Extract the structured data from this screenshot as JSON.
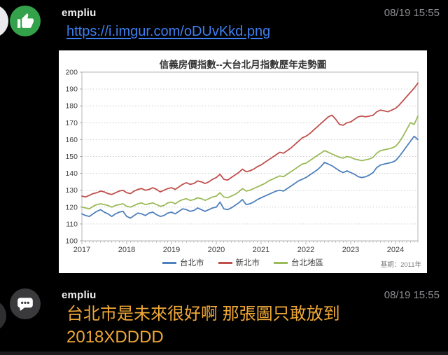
{
  "messages": [
    {
      "author": "empliu",
      "timestamp": "08/19 15:55",
      "link_text": "https://i.imgur.com/oDUvKkd.png",
      "avatar_icon": "thumbs-up-icon",
      "avatar_color": "#34a24a"
    },
    {
      "author": "empliu",
      "timestamp": "08/19 15:55",
      "text": "台北市是未來很好啊 那張圖只敢放到 2018XDDDD",
      "avatar_icon": "chat-bubble-icon",
      "avatar_color": "#3a3a3c",
      "text_color": "#f0a836"
    }
  ],
  "chart_data": {
    "type": "line",
    "title": "信義房價指數--大台北月指數歷年走勢圖",
    "note": "基期：2011年",
    "x_tick_labels": [
      "2017",
      "2018",
      "2019",
      "2020",
      "2021",
      "2022",
      "2023",
      "2024"
    ],
    "x_unit": "month",
    "months_per_label": 12,
    "ylim": [
      100,
      200
    ],
    "y_tick_step": 10,
    "grid": "dotted-horizontal",
    "legend_position": "bottom",
    "axis_color": "#b5b5b5",
    "grid_color": "#cccccc",
    "label_color": "#3f3f3f",
    "series": [
      {
        "name": "台北市",
        "color": "#4f81bd",
        "values": [
          116,
          115,
          114.5,
          116,
          117.5,
          118.5,
          117,
          116,
          114.5,
          116,
          117,
          117.5,
          114.5,
          113.5,
          115,
          116.5,
          116,
          115,
          116.5,
          117,
          115.5,
          114.5,
          115,
          116.5,
          117,
          116,
          117.5,
          119,
          118.5,
          117.5,
          118,
          119.5,
          118.5,
          117.5,
          118.5,
          119.5,
          120,
          123,
          119,
          118.5,
          119.5,
          121,
          122.5,
          124.5,
          121.5,
          122,
          123,
          124.5,
          125.5,
          126.5,
          127.5,
          128.5,
          129.5,
          130,
          129.5,
          131,
          132.5,
          134,
          135.5,
          136.5,
          137.5,
          139,
          140.5,
          142,
          144,
          146.5,
          145.5,
          144.5,
          143,
          141.5,
          140.5,
          141.5,
          140.5,
          139.5,
          138,
          137.5,
          138,
          139,
          140.5,
          143.5,
          145,
          145.5,
          146,
          146.5,
          147.5,
          150,
          153,
          156,
          159,
          162,
          160
        ]
      },
      {
        "name": "新北市",
        "color": "#c0504d",
        "values": [
          126.5,
          126,
          127,
          128,
          128.5,
          129.5,
          129,
          128,
          127.5,
          128.5,
          129.5,
          130,
          128.5,
          128,
          129.5,
          130.5,
          131,
          130,
          130.5,
          131.5,
          130.5,
          129,
          130,
          131,
          131.5,
          130.5,
          132,
          133.5,
          134.5,
          133.5,
          134,
          135.5,
          135,
          134,
          135,
          136.5,
          137.5,
          139.5,
          136.5,
          136,
          137.5,
          139,
          140.5,
          142.5,
          141,
          141.5,
          142.5,
          144,
          145,
          146.5,
          148,
          149.5,
          151,
          152.5,
          152,
          153.5,
          155,
          157,
          159,
          161,
          162,
          163.5,
          165.5,
          167.5,
          169.5,
          171.5,
          173.5,
          174.5,
          172,
          169,
          168.5,
          170,
          170.5,
          172,
          173.5,
          174,
          173.5,
          174,
          174.5,
          176.5,
          177.5,
          177,
          176.5,
          177.5,
          178.5,
          180.5,
          183,
          185.5,
          188,
          190.5,
          193.5
        ]
      },
      {
        "name": "台北地區",
        "color": "#9bbb59",
        "values": [
          120,
          119.5,
          119,
          120.5,
          121.5,
          122,
          121.5,
          121,
          120,
          121,
          121.5,
          122,
          120.5,
          120,
          121,
          122,
          122.5,
          121.5,
          122,
          122.5,
          121.5,
          120.5,
          121,
          122.5,
          123,
          122,
          123.5,
          124.5,
          125,
          124,
          124.5,
          125.5,
          125,
          124,
          125,
          126,
          126.5,
          128.5,
          126,
          125.5,
          126.5,
          127.5,
          129,
          131,
          129.5,
          130,
          131,
          132,
          133,
          134,
          135.5,
          136.5,
          137.5,
          138.5,
          138,
          139.5,
          141,
          142.5,
          144,
          145.5,
          146,
          147.5,
          149,
          150.5,
          152,
          153.5,
          152.5,
          151.5,
          150.5,
          149.5,
          149,
          150,
          149.5,
          148.5,
          148,
          147.5,
          148,
          148.5,
          149.5,
          152,
          153.5,
          154,
          154.5,
          155,
          156,
          158.5,
          162,
          166,
          170,
          169,
          174
        ]
      }
    ]
  }
}
